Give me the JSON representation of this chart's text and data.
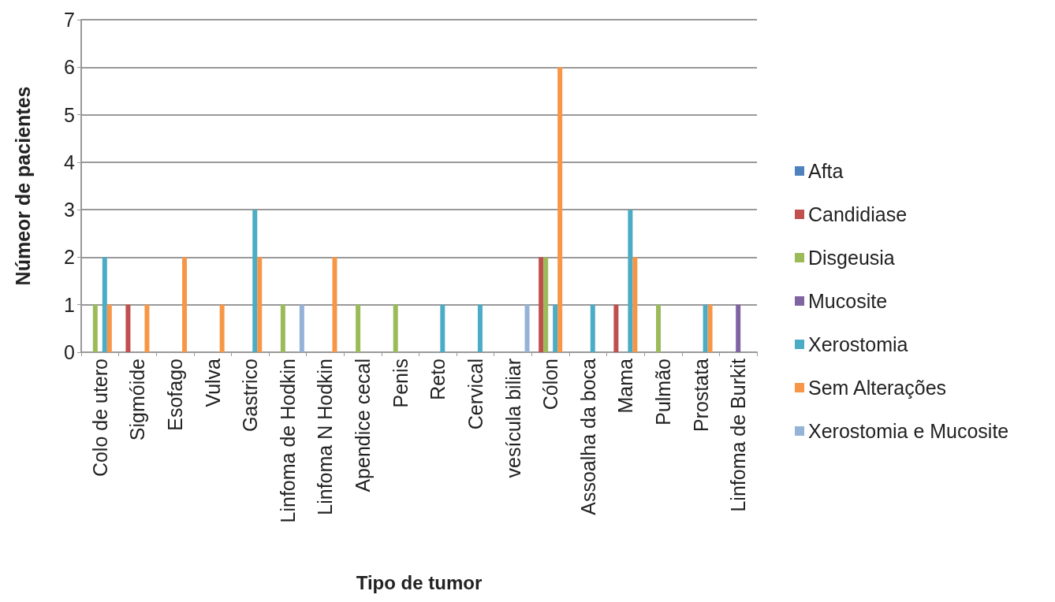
{
  "chart_data": {
    "type": "bar",
    "xlabel": "Tipo de tumor",
    "ylabel": "Númeor de pacientes",
    "categories": [
      "Colo de utero",
      "Sigmóide",
      "Esofago",
      "Vulva",
      "Gastrico",
      "Linfoma de Hodkin",
      "Linfoma N Hodkin",
      "Apendice cecal",
      "Penis",
      "Reto",
      "Cervical",
      "vesícula biliar",
      "Cólon",
      "Assoalha da boca",
      "Mama",
      "Pulmão",
      "Prostata",
      "Linfoma de Burkit"
    ],
    "series": [
      {
        "name": "Afta",
        "color": "#4f81bd",
        "values": [
          0,
          0,
          0,
          0,
          0,
          0,
          0,
          0,
          0,
          0,
          0,
          0,
          0,
          0,
          0,
          0,
          0,
          0
        ]
      },
      {
        "name": "Candidiase",
        "color": "#c0504d",
        "values": [
          0,
          1,
          0,
          0,
          0,
          0,
          0,
          0,
          0,
          0,
          0,
          0,
          2,
          0,
          1,
          0,
          0,
          0
        ]
      },
      {
        "name": "Disgeusia",
        "color": "#9bbb59",
        "values": [
          1,
          0,
          0,
          0,
          0,
          1,
          0,
          1,
          1,
          0,
          0,
          0,
          2,
          0,
          0,
          1,
          0,
          0
        ]
      },
      {
        "name": "Mucosite",
        "color": "#8064a2",
        "values": [
          0,
          0,
          0,
          0,
          0,
          0,
          0,
          0,
          0,
          0,
          0,
          0,
          0,
          0,
          0,
          0,
          0,
          1
        ]
      },
      {
        "name": "Xerostomia",
        "color": "#4bacc6",
        "values": [
          2,
          0,
          0,
          0,
          3,
          0,
          0,
          0,
          0,
          1,
          1,
          0,
          1,
          1,
          3,
          0,
          1,
          0
        ]
      },
      {
        "name": "Sem Alterações",
        "color": "#f79646",
        "values": [
          1,
          1,
          2,
          1,
          2,
          0,
          2,
          0,
          0,
          0,
          0,
          0,
          6,
          0,
          2,
          0,
          1,
          0
        ]
      },
      {
        "name": "Xerostomia e Mucosite",
        "color": "#95b3d7",
        "values": [
          0,
          0,
          0,
          0,
          0,
          1,
          0,
          0,
          0,
          0,
          0,
          1,
          0,
          0,
          0,
          0,
          0,
          0
        ]
      }
    ],
    "ylim": [
      0,
      7
    ],
    "yticks": [
      0,
      1,
      2,
      3,
      4,
      5,
      6,
      7
    ],
    "grid": "y",
    "legend": "right"
  }
}
